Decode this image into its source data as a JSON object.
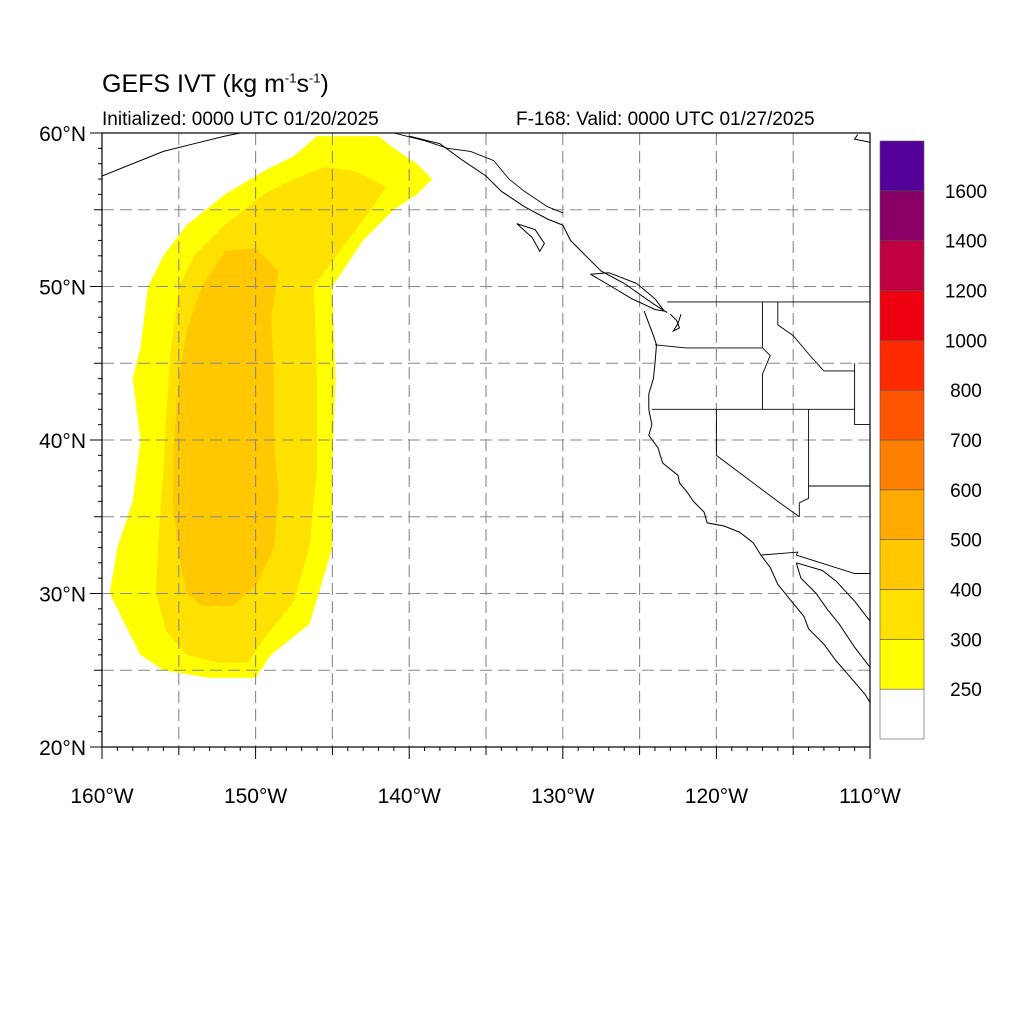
{
  "title": {
    "prefix": "GEFS IVT (kg m",
    "sup1": "-1",
    "mid": "s",
    "sup2": "-1",
    "suffix": ")"
  },
  "initialized": "Initialized: 0000 UTC 01/20/2025",
  "valid": "F-168: Valid: 0000 UTC 01/27/2025",
  "map": {
    "lon_range": [
      -160,
      -110
    ],
    "lat_range": [
      20,
      60
    ],
    "lat_labels": [
      {
        "value": 60,
        "text": "60°N"
      },
      {
        "value": 50,
        "text": "50°N"
      },
      {
        "value": 40,
        "text": "40°N"
      },
      {
        "value": 30,
        "text": "30°N"
      },
      {
        "value": 20,
        "text": "20°N"
      }
    ],
    "lon_labels": [
      {
        "value": -160,
        "text": "160°W"
      },
      {
        "value": -150,
        "text": "150°W"
      },
      {
        "value": -140,
        "text": "140°W"
      },
      {
        "value": -130,
        "text": "130°W"
      },
      {
        "value": -120,
        "text": "120°W"
      },
      {
        "value": -110,
        "text": "110°W"
      }
    ],
    "gridlines": "dashed every 5°"
  },
  "colorbar": {
    "levels": [
      "250",
      "300",
      "400",
      "500",
      "600",
      "700",
      "800",
      "1000",
      "1200",
      "1400",
      "1600"
    ],
    "colors": [
      "#ffffff",
      "#ffff00",
      "#ffe100",
      "#ffc800",
      "#ffaa00",
      "#ff8000",
      "#ff5500",
      "#ff2a00",
      "#ee0010",
      "#c00040",
      "#880066",
      "#550099"
    ]
  },
  "fields": [
    {
      "level": "250",
      "color": "#ffff00",
      "polygon": [
        [
          -153,
          24.5
        ],
        [
          -150,
          24.5
        ],
        [
          -149,
          26
        ],
        [
          -146.5,
          28
        ],
        [
          -145,
          33
        ],
        [
          -145,
          38
        ],
        [
          -144.8,
          44
        ],
        [
          -145,
          50
        ],
        [
          -143,
          53
        ],
        [
          -141,
          55
        ],
        [
          -139.5,
          56
        ],
        [
          -138.5,
          57
        ],
        [
          -139.5,
          58
        ],
        [
          -141,
          59
        ],
        [
          -142,
          59.8
        ],
        [
          -146,
          59.8
        ],
        [
          -147.5,
          58.5
        ],
        [
          -149.5,
          57.5
        ],
        [
          -152,
          56
        ],
        [
          -154.5,
          54
        ],
        [
          -156,
          52
        ],
        [
          -157,
          50
        ],
        [
          -157.5,
          46
        ],
        [
          -158,
          44
        ],
        [
          -157.5,
          40
        ],
        [
          -158,
          36
        ],
        [
          -159,
          33
        ],
        [
          -159.5,
          30
        ],
        [
          -158.5,
          28
        ],
        [
          -157.5,
          26
        ],
        [
          -156,
          25
        ]
      ]
    },
    {
      "level": "300",
      "color": "#ffe100",
      "polygon": [
        [
          -152.5,
          25.5
        ],
        [
          -150.5,
          25.5
        ],
        [
          -149.5,
          27
        ],
        [
          -147.5,
          29.5
        ],
        [
          -146.5,
          33
        ],
        [
          -146,
          38
        ],
        [
          -146,
          44
        ],
        [
          -146.2,
          50
        ],
        [
          -144,
          53
        ],
        [
          -142.5,
          55
        ],
        [
          -141.5,
          56.5
        ],
        [
          -143.5,
          57.5
        ],
        [
          -145.5,
          57.8
        ],
        [
          -147.5,
          57
        ],
        [
          -149.5,
          56
        ],
        [
          -152,
          54
        ],
        [
          -154,
          52
        ],
        [
          -155,
          50
        ],
        [
          -155.5,
          46
        ],
        [
          -155.8,
          42
        ],
        [
          -156,
          38
        ],
        [
          -156.3,
          34
        ],
        [
          -156.5,
          30
        ],
        [
          -155.8,
          27.5
        ],
        [
          -154.5,
          26
        ]
      ]
    },
    {
      "level": "400",
      "color": "#ffc800",
      "polygon": [
        [
          -153.5,
          29.2
        ],
        [
          -151.5,
          29.2
        ],
        [
          -150,
          30.5
        ],
        [
          -148.8,
          33
        ],
        [
          -148.5,
          36.5
        ],
        [
          -148.8,
          40
        ],
        [
          -148.8,
          44
        ],
        [
          -149,
          48
        ],
        [
          -148.5,
          51
        ],
        [
          -150,
          52.5
        ],
        [
          -152,
          52.3
        ],
        [
          -153.5,
          50
        ],
        [
          -154.5,
          47
        ],
        [
          -155,
          44
        ],
        [
          -155.3,
          40
        ],
        [
          -155.4,
          36
        ],
        [
          -155,
          32.5
        ],
        [
          -154.5,
          30
        ]
      ]
    }
  ],
  "coastline_segments": [
    {
      "name": "alaska-southcentral",
      "points": [
        [
          -160,
          57.2
        ],
        [
          -157.5,
          58.2
        ],
        [
          -156,
          58.8
        ],
        [
          -154,
          59.3
        ],
        [
          -152,
          59.8
        ],
        [
          -151,
          60
        ]
      ]
    },
    {
      "name": "alaska-panhandle",
      "points": [
        [
          -140,
          59.8
        ],
        [
          -138,
          59.3
        ],
        [
          -136.5,
          58.2
        ],
        [
          -135,
          57.2
        ],
        [
          -134,
          56.2
        ],
        [
          -132.5,
          55.2
        ],
        [
          -131,
          54.4
        ],
        [
          -130,
          54
        ]
      ]
    },
    {
      "name": "bc-coast",
      "points": [
        [
          -130,
          54
        ],
        [
          -129.5,
          53
        ],
        [
          -128.5,
          52
        ],
        [
          -127.5,
          51
        ],
        [
          -126,
          50.2
        ],
        [
          -125,
          49.5
        ],
        [
          -124,
          48.8
        ],
        [
          -123.2,
          48.3
        ]
      ]
    },
    {
      "name": "vancouver-island",
      "points": [
        [
          -128.2,
          50.8
        ],
        [
          -127,
          50.1
        ],
        [
          -125.5,
          49.2
        ],
        [
          -124,
          48.5
        ],
        [
          -123.4,
          48.4
        ],
        [
          -124,
          49.2
        ],
        [
          -125.2,
          50.2
        ],
        [
          -127,
          50.9
        ],
        [
          -128.2,
          50.8
        ]
      ]
    },
    {
      "name": "haida-gwaii",
      "points": [
        [
          -133,
          54.1
        ],
        [
          -132,
          53.2
        ],
        [
          -131.5,
          52.3
        ],
        [
          -131.2,
          52.8
        ],
        [
          -131.8,
          53.7
        ],
        [
          -133,
          54.1
        ]
      ]
    },
    {
      "name": "us-west-coast",
      "points": [
        [
          -124.7,
          48.4
        ],
        [
          -124.1,
          46.8
        ],
        [
          -123.9,
          46.2
        ],
        [
          -124,
          45
        ],
        [
          -124.1,
          44
        ],
        [
          -124.4,
          43
        ],
        [
          -124.4,
          42
        ],
        [
          -124.2,
          41
        ],
        [
          -124.4,
          40.3
        ],
        [
          -123.8,
          39.5
        ],
        [
          -123.5,
          38.5
        ],
        [
          -122.5,
          37.7
        ],
        [
          -122.4,
          37.2
        ],
        [
          -121.9,
          36.6
        ],
        [
          -121.5,
          36
        ],
        [
          -120.8,
          35.3
        ],
        [
          -120.6,
          34.6
        ],
        [
          -119.5,
          34.4
        ],
        [
          -118.5,
          34
        ],
        [
          -117.6,
          33.3
        ],
        [
          -117.1,
          32.5
        ],
        [
          -116.5,
          31.7
        ],
        [
          -116,
          30.6
        ],
        [
          -115.2,
          29.6
        ],
        [
          -114.3,
          28.5
        ],
        [
          -114,
          27.7
        ],
        [
          -113,
          26.7
        ],
        [
          -112.2,
          25.6
        ],
        [
          -111.5,
          24.8
        ],
        [
          -110.3,
          23.4
        ],
        [
          -110,
          22.9
        ]
      ]
    },
    {
      "name": "gulf-of-california",
      "points": [
        [
          -114.8,
          32
        ],
        [
          -114.5,
          31
        ],
        [
          -113.5,
          30
        ],
        [
          -112.8,
          29
        ],
        [
          -112,
          28
        ],
        [
          -111,
          26.5
        ],
        [
          -110,
          25.2
        ]
      ]
    },
    {
      "name": "mexico-mainland",
      "points": [
        [
          -110,
          28.2
        ],
        [
          -111,
          29.5
        ],
        [
          -112.2,
          30.8
        ],
        [
          -113.1,
          31.5
        ],
        [
          -114.8,
          32
        ]
      ]
    },
    {
      "name": "puget-sound",
      "points": [
        [
          -123,
          48.2
        ],
        [
          -122.6,
          47.8
        ],
        [
          -122.4,
          47.3
        ],
        [
          -122.8,
          47.1
        ],
        [
          -122.5,
          47.6
        ],
        [
          -122.3,
          48.2
        ]
      ]
    },
    {
      "name": "nw-corner-tip",
      "points": [
        [
          -110,
          59.4
        ],
        [
          -111,
          59.6
        ],
        [
          -110.8,
          59.9
        ]
      ]
    }
  ],
  "border_segments": [
    {
      "name": "canada-us-border",
      "points": [
        [
          -123.2,
          49
        ],
        [
          -110,
          49
        ]
      ]
    },
    {
      "name": "canada-alaska-border",
      "points": [
        [
          -141,
          60
        ],
        [
          -139,
          59.5
        ],
        [
          -137.5,
          59
        ],
        [
          -136,
          58.8
        ],
        [
          -134.5,
          58.2
        ],
        [
          -133.5,
          57
        ],
        [
          -132.5,
          56.2
        ],
        [
          -131,
          55.2
        ],
        [
          -130,
          54.8
        ]
      ]
    },
    {
      "name": "wa-or",
      "points": [
        [
          -124,
          46.2
        ],
        [
          -122,
          46
        ],
        [
          -119,
          46
        ],
        [
          -117,
          46
        ]
      ]
    },
    {
      "name": "wa-id",
      "points": [
        [
          -117,
          49
        ],
        [
          -117,
          46
        ]
      ]
    },
    {
      "name": "or-ca-nv",
      "points": [
        [
          -124.2,
          42
        ],
        [
          -111,
          42
        ]
      ]
    },
    {
      "name": "or-id",
      "points": [
        [
          -117,
          46
        ],
        [
          -116.5,
          45.5
        ],
        [
          -117,
          44.3
        ],
        [
          -117,
          42
        ]
      ]
    },
    {
      "name": "id-mt",
      "points": [
        [
          -116,
          49
        ],
        [
          -116,
          47.5
        ],
        [
          -115,
          46.8
        ],
        [
          -114,
          45.6
        ],
        [
          -113,
          44.5
        ],
        [
          -111,
          44.5
        ]
      ]
    },
    {
      "name": "ca-nv-east",
      "points": [
        [
          -120,
          42
        ],
        [
          -120,
          39
        ],
        [
          -118,
          37.5
        ],
        [
          -116,
          36
        ],
        [
          -114.6,
          35
        ]
      ]
    },
    {
      "name": "nv-az",
      "points": [
        [
          -114,
          42
        ],
        [
          -114,
          36.2
        ],
        [
          -114.6,
          35.9
        ],
        [
          -114.6,
          35
        ]
      ]
    },
    {
      "name": "ut-az",
      "points": [
        [
          -114,
          37
        ],
        [
          -110,
          37
        ]
      ]
    },
    {
      "name": "id-wy-edge",
      "points": [
        [
          -111,
          45
        ],
        [
          -111,
          41
        ],
        [
          -110,
          41
        ]
      ]
    },
    {
      "name": "us-mexico",
      "points": [
        [
          -117.1,
          32.5
        ],
        [
          -114.7,
          32.7
        ],
        [
          -114.8,
          32.5
        ],
        [
          -111,
          31.3
        ],
        [
          -110,
          31.3
        ]
      ]
    }
  ]
}
